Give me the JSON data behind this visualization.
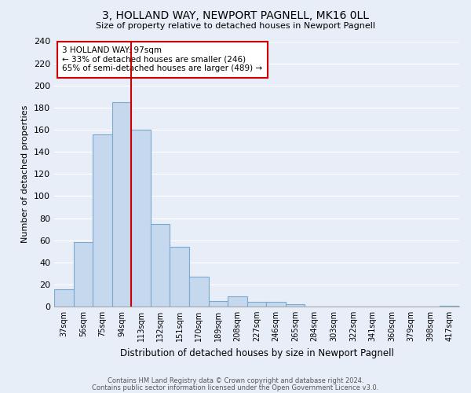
{
  "title": "3, HOLLAND WAY, NEWPORT PAGNELL, MK16 0LL",
  "subtitle": "Size of property relative to detached houses in Newport Pagnell",
  "xlabel": "Distribution of detached houses by size in Newport Pagnell",
  "ylabel": "Number of detached properties",
  "bar_color": "#c5d8ee",
  "bar_edge_color": "#7aaacf",
  "background_color": "#e8eef8",
  "grid_color": "#ffffff",
  "categories": [
    "37sqm",
    "56sqm",
    "75sqm",
    "94sqm",
    "113sqm",
    "132sqm",
    "151sqm",
    "170sqm",
    "189sqm",
    "208sqm",
    "227sqm",
    "246sqm",
    "265sqm",
    "284sqm",
    "303sqm",
    "322sqm",
    "341sqm",
    "360sqm",
    "379sqm",
    "398sqm",
    "417sqm"
  ],
  "values": [
    16,
    58,
    156,
    185,
    160,
    75,
    54,
    27,
    5,
    9,
    4,
    4,
    2,
    0,
    0,
    0,
    0,
    0,
    0,
    0,
    1
  ],
  "ylim": [
    0,
    240
  ],
  "yticks": [
    0,
    20,
    40,
    60,
    80,
    100,
    120,
    140,
    160,
    180,
    200,
    220,
    240
  ],
  "vline_x_index": 3,
  "vline_color": "#cc0000",
  "annotation_title": "3 HOLLAND WAY: 97sqm",
  "annotation_line1": "← 33% of detached houses are smaller (246)",
  "annotation_line2": "65% of semi-detached houses are larger (489) →",
  "annotation_box_color": "white",
  "annotation_box_edge": "#cc0000",
  "footer1": "Contains HM Land Registry data © Crown copyright and database right 2024.",
  "footer2": "Contains public sector information licensed under the Open Government Licence v3.0."
}
